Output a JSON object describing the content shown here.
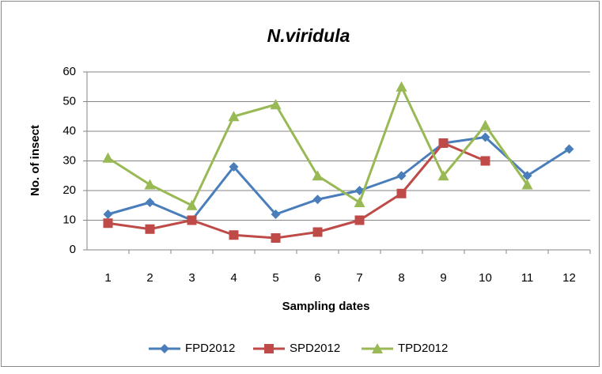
{
  "chart_data": {
    "type": "line",
    "title": "N.viridula",
    "x_label": "Sampling dates",
    "y_label": "No. of insect",
    "categories": [
      "1",
      "2",
      "3",
      "4",
      "5",
      "6",
      "7",
      "8",
      "9",
      "10",
      "11",
      "12"
    ],
    "series": [
      {
        "name": "FPD2012",
        "color": "#4a7ebb",
        "marker": "diamond",
        "values": [
          12,
          16,
          10,
          28,
          12,
          17,
          20,
          25,
          36,
          38,
          25,
          34
        ]
      },
      {
        "name": "SPD2012",
        "color": "#be4b48",
        "marker": "square",
        "values": [
          9,
          7,
          10,
          5,
          4,
          6,
          10,
          19,
          36,
          30,
          null,
          null
        ]
      },
      {
        "name": "TPD2012",
        "color": "#98b954",
        "marker": "triangle",
        "values": [
          31,
          22,
          15,
          45,
          49,
          25,
          16,
          55,
          25,
          42,
          22,
          null
        ]
      }
    ],
    "ylim": [
      0,
      60
    ],
    "yticks": [
      0,
      10,
      20,
      30,
      40,
      50,
      60
    ],
    "grid": true,
    "legend": "bottom"
  }
}
